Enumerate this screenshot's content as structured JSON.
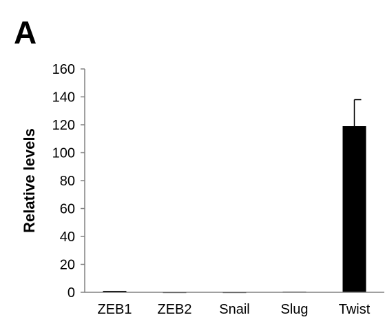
{
  "panel_label": "A",
  "chart_data": {
    "type": "bar",
    "categories": [
      "ZEB1",
      "ZEB2",
      "Snail",
      "Slug",
      "Twist"
    ],
    "values": [
      1,
      0.2,
      0.2,
      0.5,
      119
    ],
    "error": [
      0.3,
      0.1,
      0.1,
      0.2,
      19
    ],
    "ylabel": "Relative levels",
    "xlabel": "",
    "ylim": [
      0,
      160
    ],
    "yticks": [
      0,
      20,
      40,
      60,
      80,
      100,
      120,
      140,
      160
    ],
    "bar_color": "#000000",
    "grid": false
  }
}
